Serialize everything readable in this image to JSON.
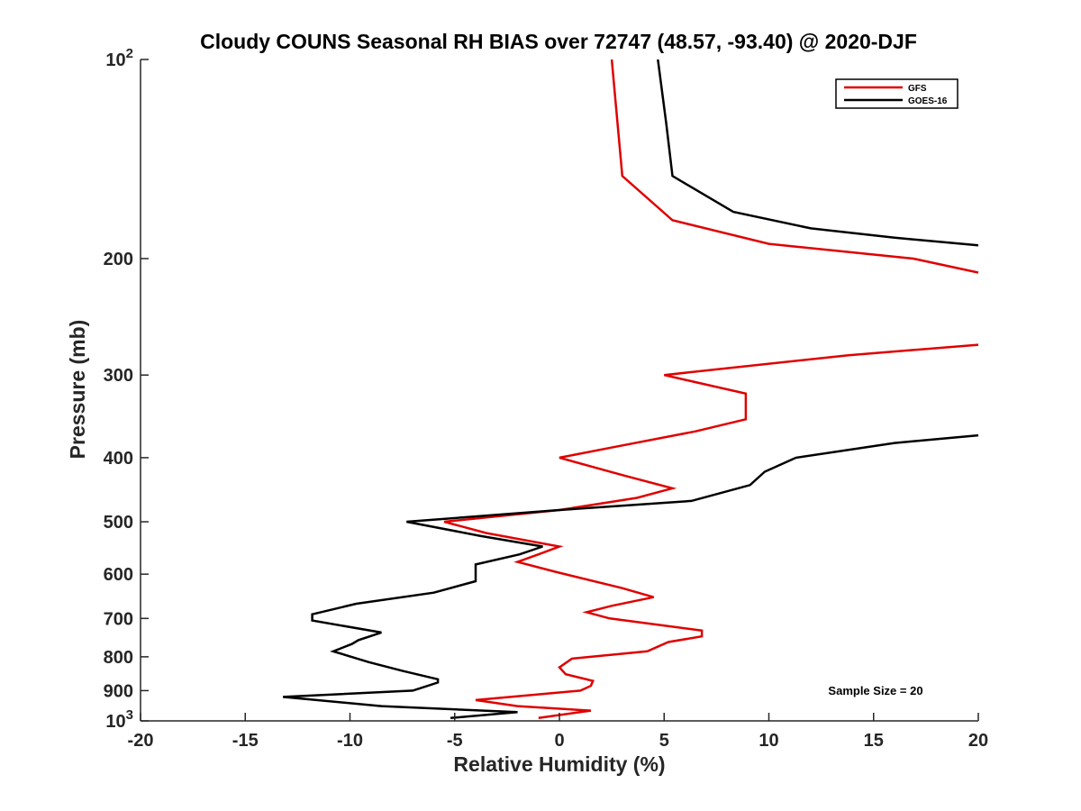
{
  "chart_data": {
    "type": "line",
    "title": "Cloudy COUNS Seasonal RH BIAS over 72747 (48.57, -93.40) @ 2020-DJF",
    "xlabel": "Relative Humidity (%)",
    "ylabel": "Pressure (mb)",
    "xlim": [
      -20,
      20
    ],
    "ylim": [
      100,
      1000
    ],
    "yscale": "log",
    "y_reversed": true,
    "x_ticks": [
      "-20",
      "-15",
      "-10",
      "-5",
      "0",
      "5",
      "10",
      "15",
      "20"
    ],
    "y_ticks": [
      {
        "value": 100,
        "label": "10",
        "sup": "2"
      },
      {
        "value": 200,
        "label": "200",
        "sup": ""
      },
      {
        "value": 300,
        "label": "300",
        "sup": ""
      },
      {
        "value": 400,
        "label": "400",
        "sup": ""
      },
      {
        "value": 500,
        "label": "500",
        "sup": ""
      },
      {
        "value": 600,
        "label": "600",
        "sup": ""
      },
      {
        "value": 700,
        "label": "700",
        "sup": ""
      },
      {
        "value": 800,
        "label": "800",
        "sup": ""
      },
      {
        "value": 900,
        "label": "900",
        "sup": ""
      },
      {
        "value": 1000,
        "label": "10",
        "sup": "3"
      }
    ],
    "legend_position": "top-right",
    "annotation": "Sample Size = 20",
    "grid": false,
    "series": [
      {
        "name": "GFS",
        "color": "#e00000",
        "points": [
          [
            2.5,
            100
          ],
          [
            3.0,
            150
          ],
          [
            5.4,
            175
          ],
          [
            10.0,
            190
          ],
          [
            16.9,
            200
          ],
          [
            20.0,
            210
          ],
          [
            null,
            null
          ],
          [
            20.0,
            270
          ],
          [
            13.8,
            280
          ],
          [
            5.0,
            300
          ],
          [
            8.9,
            320
          ],
          [
            8.9,
            350
          ],
          [
            6.5,
            365
          ],
          [
            2.7,
            385
          ],
          [
            0.0,
            400
          ],
          [
            3.0,
            425
          ],
          [
            5.4,
            445
          ],
          [
            3.7,
            460
          ],
          [
            0.0,
            480
          ],
          [
            -5.5,
            500
          ],
          [
            -3.5,
            520
          ],
          [
            0.0,
            545
          ],
          [
            -1.0,
            560
          ],
          [
            -2.0,
            575
          ],
          [
            -0.2,
            595
          ],
          [
            3.0,
            630
          ],
          [
            4.5,
            650
          ],
          [
            2.5,
            670
          ],
          [
            1.3,
            685
          ],
          [
            2.4,
            700
          ],
          [
            6.8,
            730
          ],
          [
            6.8,
            745
          ],
          [
            5.2,
            760
          ],
          [
            4.2,
            785
          ],
          [
            0.6,
            805
          ],
          [
            0.0,
            830
          ],
          [
            0.3,
            850
          ],
          [
            1.6,
            870
          ],
          [
            1.5,
            885
          ],
          [
            1.0,
            900
          ],
          [
            -4.0,
            930
          ],
          [
            -2.0,
            950
          ],
          [
            1.5,
            965
          ],
          [
            -1.0,
            990
          ]
        ]
      },
      {
        "name": "GOES-16",
        "color": "#000000",
        "points": [
          [
            4.7,
            100
          ],
          [
            5.1,
            125
          ],
          [
            5.4,
            150
          ],
          [
            8.3,
            170
          ],
          [
            12.0,
            180
          ],
          [
            16.0,
            186
          ],
          [
            20.0,
            191
          ],
          [
            null,
            null
          ],
          [
            20.0,
            370
          ],
          [
            16.0,
            380
          ],
          [
            11.3,
            400
          ],
          [
            9.8,
            420
          ],
          [
            9.1,
            440
          ],
          [
            6.3,
            465
          ],
          [
            0.0,
            480
          ],
          [
            -7.3,
            500
          ],
          [
            -3.8,
            525
          ],
          [
            -0.8,
            545
          ],
          [
            -1.9,
            560
          ],
          [
            -4.0,
            580
          ],
          [
            -4.0,
            600
          ],
          [
            -4.0,
            615
          ],
          [
            -6.0,
            640
          ],
          [
            -9.7,
            665
          ],
          [
            -11.8,
            690
          ],
          [
            -11.8,
            705
          ],
          [
            -8.5,
            735
          ],
          [
            -9.6,
            755
          ],
          [
            -9.9,
            765
          ],
          [
            -10.8,
            785
          ],
          [
            -9.1,
            815
          ],
          [
            -7.5,
            840
          ],
          [
            -5.8,
            865
          ],
          [
            -5.8,
            875
          ],
          [
            -7.0,
            900
          ],
          [
            -13.2,
            920
          ],
          [
            -8.5,
            950
          ],
          [
            -2.0,
            970
          ],
          [
            -5.2,
            990
          ]
        ]
      }
    ]
  }
}
